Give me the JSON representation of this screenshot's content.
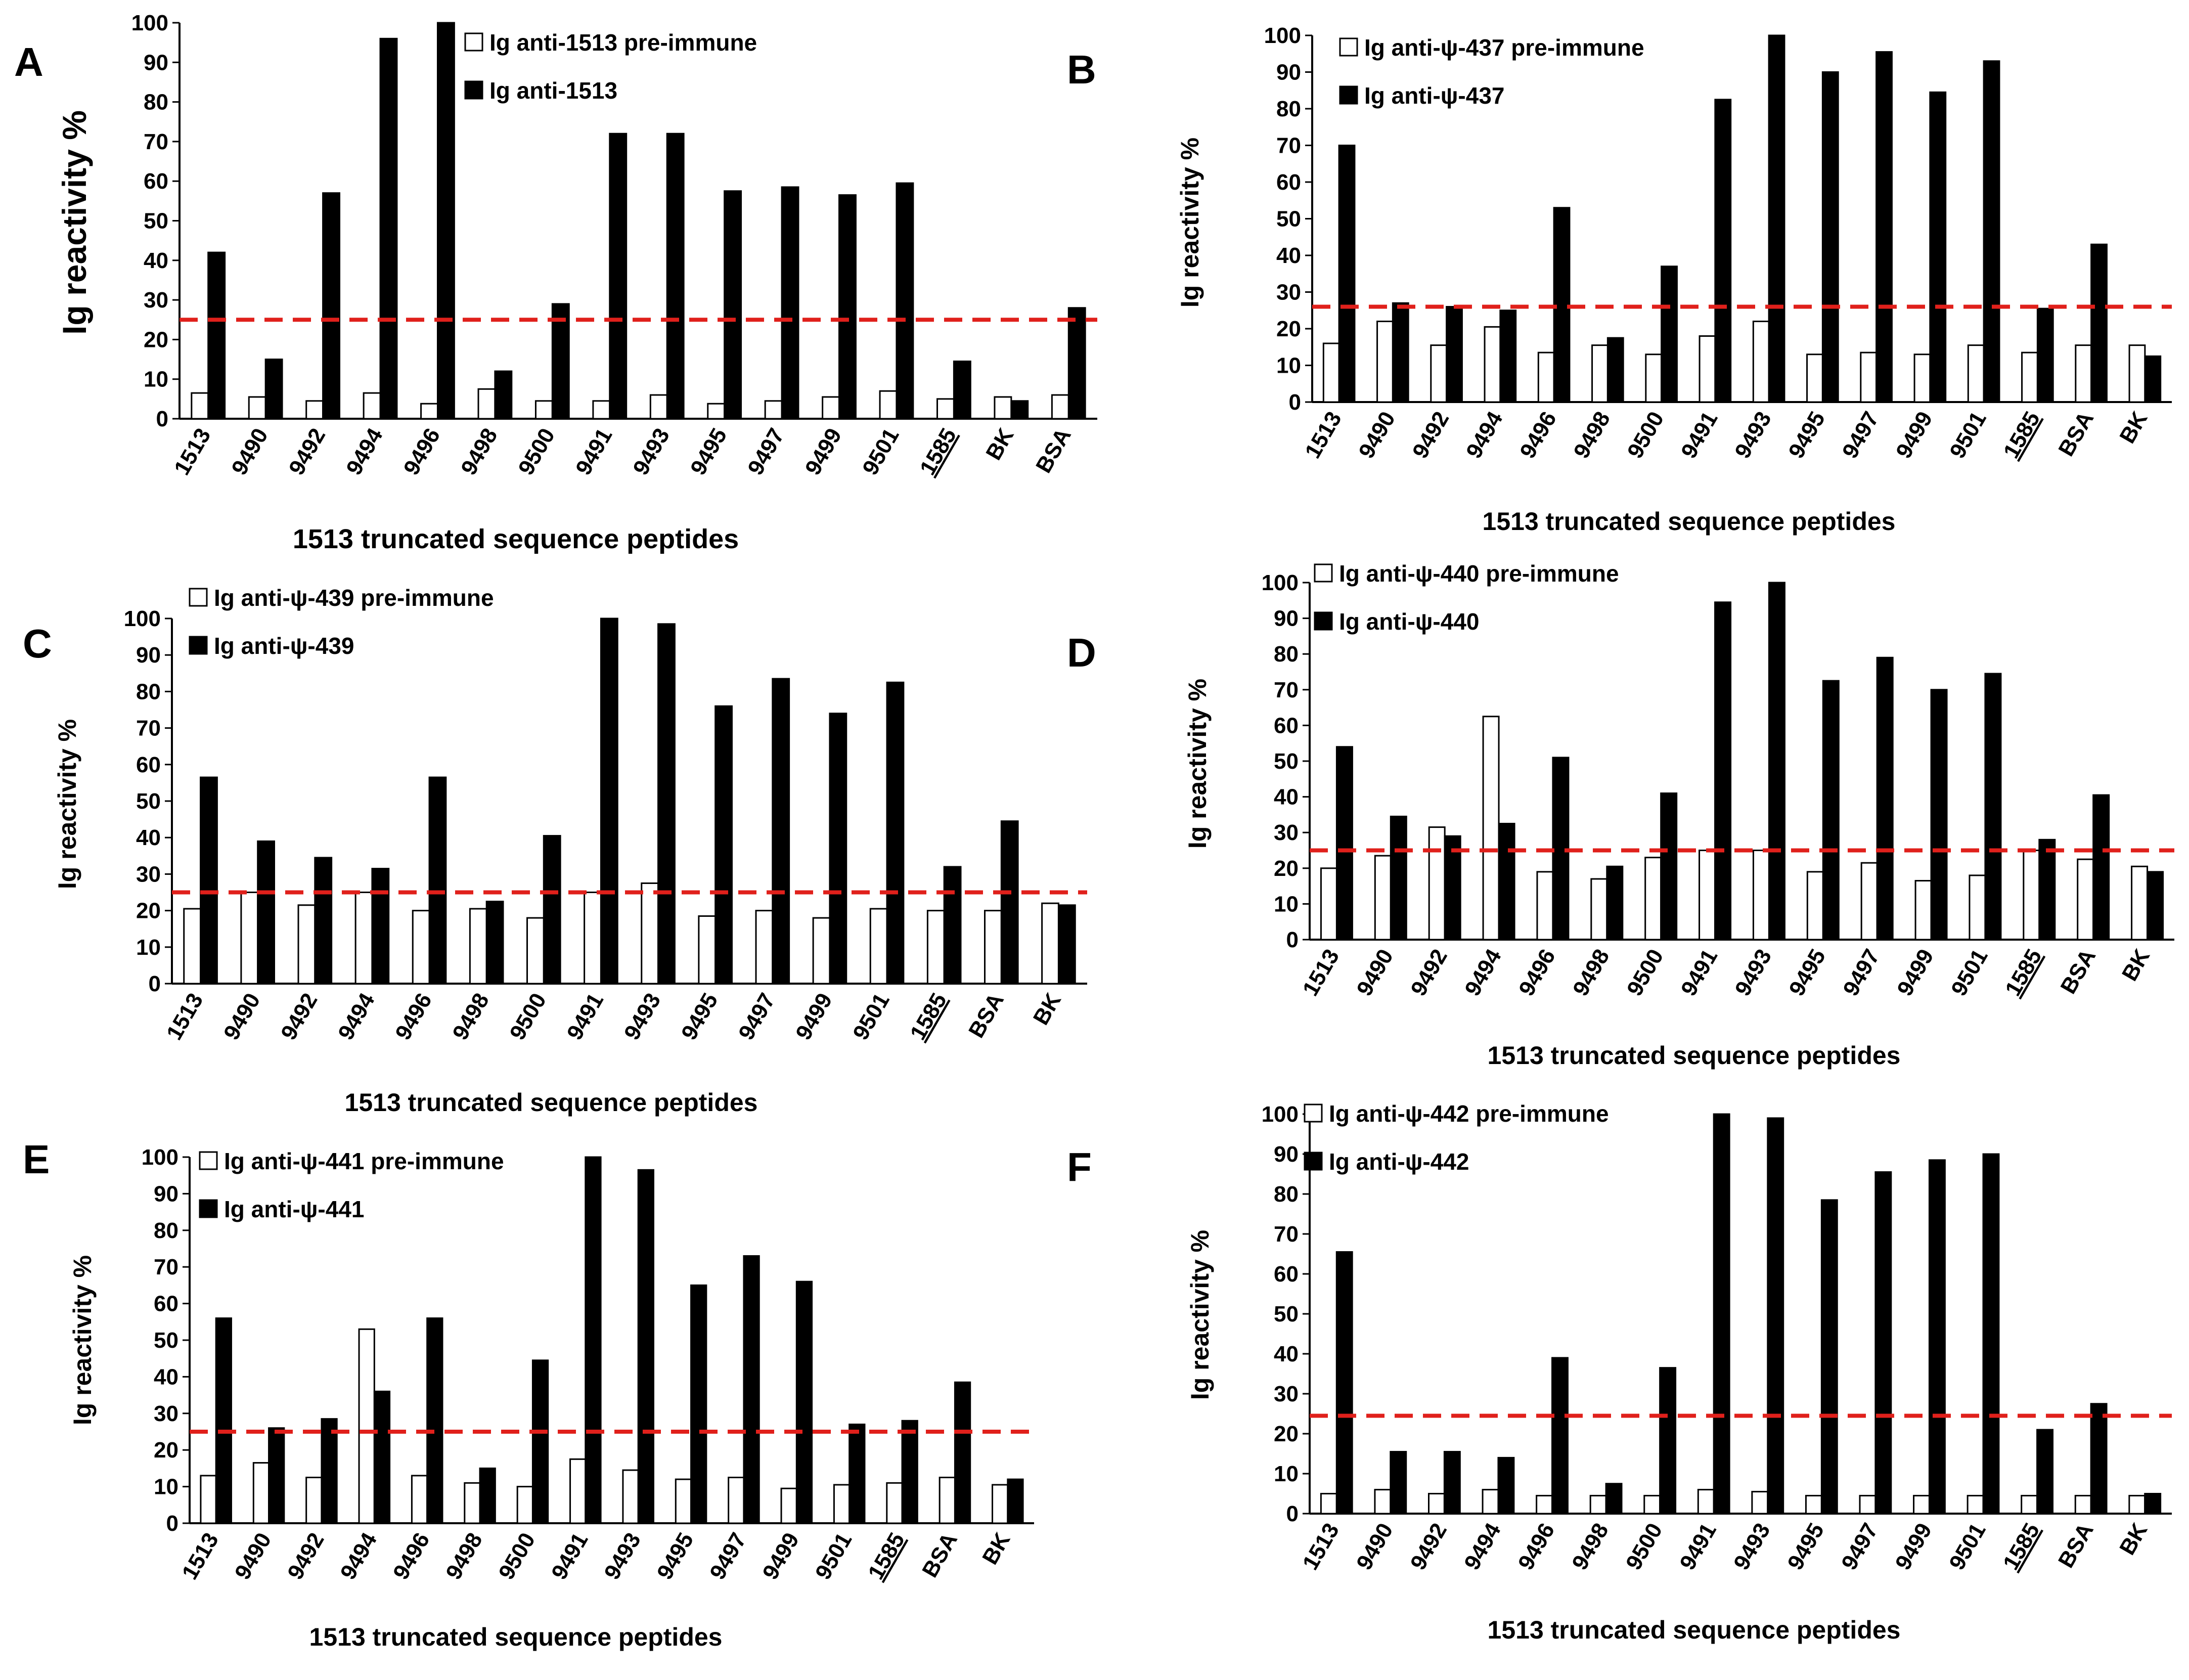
{
  "colors": {
    "pre_immune_fill": "#ffffff",
    "immune_fill": "#000000",
    "bar_stroke": "#000000",
    "threshold_line": "#e0201b",
    "highlight_tick": "#c00000"
  },
  "chart_data": [
    {
      "type": "bar",
      "panel": "A",
      "xlabel": "1513 truncated  sequence  peptides",
      "ylabel": "Ig reactivity  %",
      "ylim": [
        0,
        100
      ],
      "yticks": [
        "0",
        "10",
        "20",
        "30",
        "40",
        "50",
        "60",
        "70",
        "80",
        "90",
        "100"
      ],
      "threshold": 25,
      "legend_position": "top-right",
      "categories": [
        "1513",
        "9490",
        "9492",
        "9494",
        "9496",
        "9498",
        "9500",
        "9491",
        "9493",
        "9495",
        "9497",
        "9499",
        "9501",
        "1585",
        "BK",
        "BSA"
      ],
      "highlight_category": "1513",
      "underlined_category": "1585",
      "series": [
        {
          "name": "Ig anti-1513 pre-immune",
          "values": [
            6.5,
            5.5,
            4.5,
            6.5,
            3.8,
            7.5,
            4.5,
            4.5,
            6.0,
            3.8,
            4.5,
            5.5,
            7.0,
            5.0,
            5.5,
            6.0
          ]
        },
        {
          "name": "Ig anti-1513",
          "values": [
            42,
            15,
            57,
            96,
            100,
            12,
            29,
            72,
            72,
            57.5,
            58.5,
            56.5,
            59.5,
            14.5,
            4.5,
            28
          ]
        }
      ]
    },
    {
      "type": "bar",
      "panel": "B",
      "xlabel": "1513 truncated sequence peptides",
      "ylabel": "Ig reactivity %",
      "ylim": [
        0,
        100
      ],
      "yticks": [
        "0",
        "10",
        "20",
        "30",
        "40",
        "50",
        "60",
        "70",
        "80",
        "90",
        "100"
      ],
      "threshold": 26,
      "legend_position": "top-left",
      "categories": [
        "1513",
        "9490",
        "9492",
        "9494",
        "9496",
        "9498",
        "9500",
        "9491",
        "9493",
        "9495",
        "9497",
        "9499",
        "9501",
        "1585",
        "BSA",
        "BK"
      ],
      "highlight_category": "1513",
      "underlined_category": "1585",
      "series": [
        {
          "name": "Ig anti-ψ-437 pre-immune",
          "values": [
            16,
            22,
            15.5,
            20.5,
            13.5,
            15.5,
            13,
            18,
            22,
            13,
            13.5,
            13,
            15.5,
            13.5,
            15.5,
            15.5
          ]
        },
        {
          "name": "Ig anti-ψ-437",
          "values": [
            70,
            27,
            26,
            25,
            53,
            17.5,
            37,
            82.5,
            100,
            90,
            95.5,
            84.5,
            93,
            25.5,
            43,
            12.5
          ]
        }
      ]
    },
    {
      "type": "bar",
      "panel": "C",
      "xlabel": "1513 truncated sequence peptides",
      "ylabel": "Ig reactivity %",
      "ylim": [
        0,
        100
      ],
      "yticks": [
        "0",
        "10",
        "20",
        "30",
        "40",
        "50",
        "60",
        "70",
        "80",
        "90",
        "100"
      ],
      "threshold": 25,
      "legend_position": "top-left",
      "categories": [
        "1513",
        "9490",
        "9492",
        "9494",
        "9496",
        "9498",
        "9500",
        "9491",
        "9493",
        "9495",
        "9497",
        "9499",
        "9501",
        "1585",
        "BSA",
        "BK"
      ],
      "highlight_category": "1513",
      "underlined_category": "1585",
      "series": [
        {
          "name": "Ig anti-ψ-439 pre-immune",
          "values": [
            20.5,
            25,
            21.5,
            25,
            20,
            20.5,
            18,
            25,
            27.5,
            18.5,
            20,
            18,
            20.5,
            20,
            20,
            22
          ]
        },
        {
          "name": "Ig anti-ψ-439",
          "values": [
            56.5,
            39,
            34.5,
            31.5,
            56.5,
            22.5,
            40.5,
            100,
            98.5,
            76,
            83.5,
            74,
            82.5,
            32,
            44.5,
            21.5
          ]
        }
      ]
    },
    {
      "type": "bar",
      "panel": "D",
      "xlabel": "1513 truncated sequence peptides",
      "ylabel": "Ig reactivity %",
      "ylim": [
        0,
        100
      ],
      "yticks": [
        "0",
        "10",
        "20",
        "30",
        "40",
        "50",
        "60",
        "70",
        "80",
        "90",
        "100"
      ],
      "threshold": 25,
      "legend_position": "top-left",
      "categories": [
        "1513",
        "9490",
        "9492",
        "9494",
        "9496",
        "9498",
        "9500",
        "9491",
        "9493",
        "9495",
        "9497",
        "9499",
        "9501",
        "1585",
        "BSA",
        "BK"
      ],
      "highlight_category": "1513",
      "underlined_category": "1585",
      "series": [
        {
          "name": "Ig anti-ψ-440 pre-immune",
          "values": [
            20,
            23.5,
            31.5,
            62.5,
            19,
            17,
            23,
            25,
            25,
            19,
            21.5,
            16.5,
            18,
            25,
            22.5,
            20.5
          ]
        },
        {
          "name": "Ig anti-ψ-440",
          "values": [
            54,
            34.5,
            29,
            32.5,
            51,
            20.5,
            41,
            94.5,
            100,
            72.5,
            79,
            70,
            74.5,
            28,
            40.5,
            19
          ]
        }
      ]
    },
    {
      "type": "bar",
      "panel": "E",
      "xlabel": "1513 truncated sequence peptides",
      "ylabel": "Ig reactivity %",
      "ylim": [
        0,
        100
      ],
      "yticks": [
        "0",
        "10",
        "20",
        "30",
        "40",
        "50",
        "60",
        "70",
        "80",
        "90",
        "100"
      ],
      "threshold": 25,
      "legend_position": "top-left",
      "categories": [
        "1513",
        "9490",
        "9492",
        "9494",
        "9496",
        "9498",
        "9500",
        "9491",
        "9493",
        "9495",
        "9497",
        "9499",
        "9501",
        "1585",
        "BSA",
        "BK"
      ],
      "highlight_category": "1513",
      "underlined_category": "1585",
      "series": [
        {
          "name": "Ig anti-ψ-441 pre-immune",
          "values": [
            13,
            16.5,
            12.5,
            53,
            13,
            11,
            10,
            17.5,
            14.5,
            12,
            12.5,
            9.5,
            10.5,
            11,
            12.5,
            10.5
          ]
        },
        {
          "name": "Ig anti-ψ-441",
          "values": [
            56,
            26,
            28.5,
            36,
            56,
            15,
            44.5,
            100,
            96.5,
            65,
            73,
            66,
            27,
            28,
            38.5,
            12
          ]
        }
      ]
    },
    {
      "type": "bar",
      "panel": "F",
      "xlabel": "1513 truncated  sequence  peptides",
      "ylabel": "Ig reactivity  %",
      "ylim": [
        0,
        100
      ],
      "yticks": [
        "0",
        "10",
        "20",
        "30",
        "40",
        "50",
        "60",
        "70",
        "80",
        "90",
        "100"
      ],
      "threshold": 24.5,
      "legend_position": "top-left",
      "categories": [
        "1513",
        "9490",
        "9492",
        "9494",
        "9496",
        "9498",
        "9500",
        "9491",
        "9493",
        "9495",
        "9497",
        "9499",
        "9501",
        "1585",
        "BSA",
        "BK"
      ],
      "highlight_category": "1513",
      "underlined_category": "1585",
      "series": [
        {
          "name": "Ig anti-ψ-442 pre-immune",
          "values": [
            5,
            6,
            5,
            6,
            4.5,
            4.5,
            4.5,
            6,
            5.5,
            4.5,
            4.5,
            4.5,
            4.5,
            4.5,
            4.5,
            4.5
          ]
        },
        {
          "name": "Ig anti-ψ-442",
          "values": [
            65.5,
            15.5,
            15.5,
            14,
            39,
            7.5,
            36.5,
            100,
            99,
            78.5,
            85.5,
            88.5,
            90,
            21,
            27.5,
            5
          ]
        }
      ]
    }
  ]
}
